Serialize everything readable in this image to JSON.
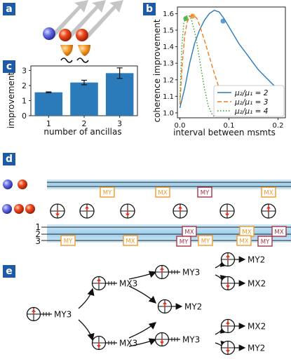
{
  "panels": {
    "a": "a",
    "b": "b",
    "c": "c",
    "d": "d",
    "e": "e"
  },
  "chart_bar": {
    "type": "bar",
    "categories": [
      "1",
      "2",
      "3"
    ],
    "values": [
      1.55,
      2.2,
      2.82
    ],
    "errors": [
      0.03,
      0.15,
      0.35
    ],
    "xlabel": "number of ancillas",
    "ylabel": "improvement",
    "ylim": [
      0,
      3.3
    ],
    "yticks": [
      "0",
      "1",
      "2",
      "3"
    ],
    "color": "#2b7bba"
  },
  "chart_line": {
    "type": "line",
    "xlabel": "interval between msmts",
    "ylabel": "coherence improvement",
    "xlim": [
      -0.005,
      0.215
    ],
    "ylim": [
      0.97,
      1.64
    ],
    "xticks": [
      "0.0",
      "0.1",
      "0.2"
    ],
    "yticks": [
      "1.0",
      "1.1",
      "1.2",
      "1.3",
      "1.4",
      "1.5",
      "1.6"
    ],
    "legend_position": "bottom-right",
    "series": [
      {
        "name": "μ₂/μ₁ = 2",
        "color": "#2b7bba",
        "dash": "solid",
        "x": [
          0,
          0.01,
          0.02,
          0.03,
          0.04,
          0.05,
          0.06,
          0.07,
          0.08,
          0.09,
          0.1,
          0.11,
          0.12,
          0.13,
          0.14,
          0.15,
          0.16,
          0.17,
          0.18,
          0.19,
          0.2
        ],
        "y": [
          1.03,
          1.15,
          1.3,
          1.42,
          1.5,
          1.56,
          1.6,
          1.62,
          1.61,
          1.57,
          1.52,
          1.47,
          1.42,
          1.38,
          1.34,
          1.3,
          1.26,
          1.23,
          1.2,
          1.17,
          1.15
        ],
        "marker": {
          "x": 0.088,
          "y": 1.555
        }
      },
      {
        "name": "μ₂/μ₁ = 3",
        "color": "#f07d18",
        "dash": "dashed",
        "x": [
          0,
          0.005,
          0.01,
          0.015,
          0.02,
          0.025,
          0.03,
          0.035,
          0.04,
          0.05,
          0.06,
          0.07,
          0.08,
          0.09,
          0.1
        ],
        "y": [
          1.05,
          1.3,
          1.47,
          1.55,
          1.58,
          1.59,
          1.585,
          1.57,
          1.53,
          1.44,
          1.34,
          1.24,
          1.15,
          1.07,
          0.99
        ],
        "marker": {
          "x": 0.026,
          "y": 1.585
        }
      },
      {
        "name": "μ₂/μ₁ = 4",
        "color": "#2ca02c",
        "dash": "dotted",
        "x": [
          0,
          0.004,
          0.008,
          0.012,
          0.016,
          0.02,
          0.024,
          0.03,
          0.036,
          0.042,
          0.05,
          0.058,
          0.066,
          0.072
        ],
        "y": [
          1.08,
          1.4,
          1.54,
          1.58,
          1.59,
          1.585,
          1.56,
          1.49,
          1.4,
          1.29,
          1.15,
          1.04,
          0.99,
          0.97
        ],
        "marker": {
          "x": 0.012,
          "y": 1.57
        }
      }
    ]
  },
  "panel_d": {
    "row1_labels": [
      "MY",
      "MX",
      "MY",
      "MX"
    ],
    "row2_labels": [
      "MY",
      "MX",
      "MX",
      "MY",
      "MX",
      "MY",
      "MX",
      "MX",
      "MY"
    ],
    "wire_labels": [
      "1",
      "2",
      "3"
    ]
  },
  "panel_e": {
    "root": "MY3",
    "level1": [
      "MX3",
      "MX3"
    ],
    "level2": [
      "MY3",
      "MY2",
      "MY3"
    ],
    "leaves": [
      "MY2",
      "MX2",
      "MX2",
      "MY2"
    ]
  },
  "colors": {
    "blue_atom": "#5b63d9",
    "red_atom": "#e8431c",
    "orange": "#f09a2a",
    "maroon": "#a83248",
    "arrow_red": "#e03020",
    "badge": "#1f5aa6"
  }
}
